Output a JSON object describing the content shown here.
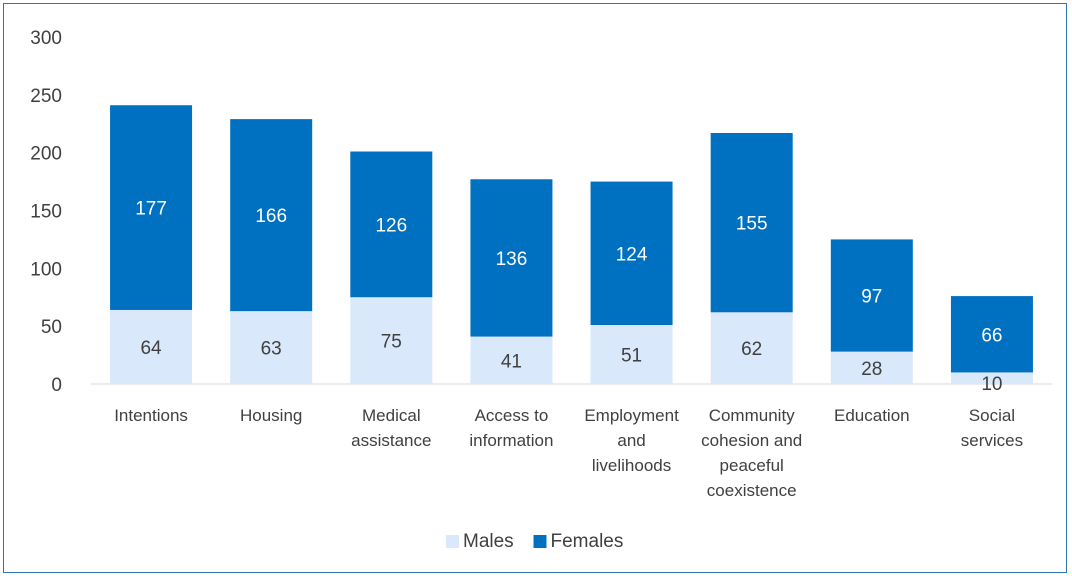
{
  "chart_data": {
    "type": "bar",
    "stacked": true,
    "categories": [
      [
        "Intentions"
      ],
      [
        "Housing"
      ],
      [
        "Medical",
        "assistance"
      ],
      [
        "Access to",
        "information"
      ],
      [
        "Employment",
        "and",
        "livelihoods"
      ],
      [
        "Community",
        "cohesion and",
        "peaceful",
        "coexistence"
      ],
      [
        "Education"
      ],
      [
        "Social",
        "services"
      ]
    ],
    "series": [
      {
        "name": "Males",
        "color": "#dae8fb",
        "label_color": "#404040",
        "values": [
          64,
          63,
          75,
          41,
          51,
          62,
          28,
          10
        ]
      },
      {
        "name": "Females",
        "color": "#0070c0",
        "label_color": "#ffffff",
        "values": [
          177,
          166,
          126,
          136,
          124,
          155,
          97,
          66
        ]
      }
    ],
    "ylim": [
      0,
      300
    ],
    "yticks": [
      0,
      50,
      100,
      150,
      200,
      250,
      300
    ],
    "grid": false,
    "legend": "bottom",
    "xlabel": "",
    "ylabel": "",
    "title": ""
  }
}
